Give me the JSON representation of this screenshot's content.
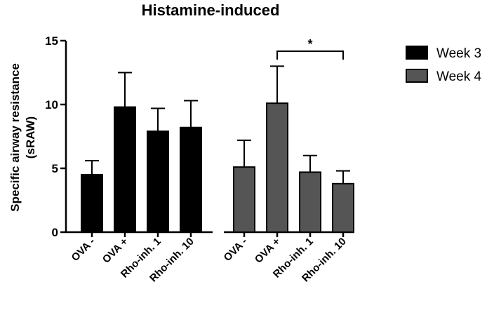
{
  "chart_data": {
    "type": "bar",
    "title": "Histamine-induced",
    "xlabel": "",
    "ylabel_lines": [
      "Specific airway resistance",
      "(sRAW)"
    ],
    "ylim": [
      0,
      15
    ],
    "yticks": [
      0,
      5,
      10,
      15
    ],
    "grid": false,
    "legend_position": "top-right",
    "series": [
      {
        "name": "Week 3",
        "color": "#000000",
        "categories": [
          "OVA -",
          "OVA +",
          "Rho-inh. 1",
          "Rho-inh. 10"
        ],
        "values": [
          4.5,
          9.8,
          7.9,
          8.2
        ],
        "errors": [
          1.1,
          2.7,
          1.8,
          2.1
        ]
      },
      {
        "name": "Week 4",
        "color": "#555555",
        "categories": [
          "OVA -",
          "OVA +",
          "Rho-inh. 1",
          "Rho-inh. 10"
        ],
        "values": [
          5.1,
          10.1,
          4.7,
          3.8
        ],
        "errors": [
          2.1,
          2.9,
          1.3,
          1.0
        ]
      }
    ],
    "significance": [
      {
        "series": 1,
        "from": 1,
        "to": 3,
        "label": "*"
      }
    ]
  }
}
